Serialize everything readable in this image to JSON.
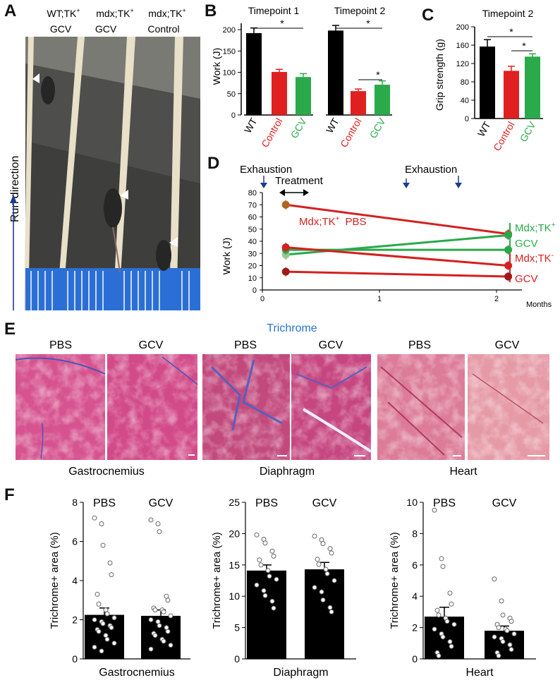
{
  "panels": {
    "A": "A",
    "B": "B",
    "C": "C",
    "D": "D",
    "E": "E",
    "F": "F"
  },
  "panel_a": {
    "col_labels": [
      {
        "line1": "WT;TK",
        "sup": "+",
        "line2": "GCV"
      },
      {
        "line1": "mdx;TK",
        "sup": "+",
        "line2": "GCV"
      },
      {
        "line1": "mdx;TK",
        "sup": "+",
        "line2": "Control"
      }
    ],
    "run_direction": "Run direction",
    "colors": {
      "belt": "#3c3c3a",
      "rail": "#e6ddc8",
      "lane_blue": "#2b6fd6",
      "mouse": "#2a2a2a"
    }
  },
  "panel_b": {
    "groups": [
      {
        "title": "Timepoint 1",
        "categories": [
          "WT",
          "Control",
          "GCV"
        ],
        "values": [
          192,
          101,
          89
        ],
        "errors": [
          12,
          6,
          8
        ]
      },
      {
        "title": "Timepoint 2",
        "categories": [
          "WT",
          "Control",
          "GCV"
        ],
        "values": [
          198,
          56,
          71
        ],
        "errors": [
          12,
          5,
          9
        ]
      }
    ],
    "ylabel": "Work (J)",
    "yticks": [
      0,
      50,
      100,
      150,
      200
    ],
    "ylim": [
      0,
      220
    ],
    "sig": "*"
  },
  "panel_c": {
    "title": "Timepoint 2",
    "categories": [
      "WT",
      "Control",
      "GCV"
    ],
    "values": [
      157,
      104,
      135
    ],
    "errors": [
      15,
      10,
      6
    ],
    "ylabel": "Grip strength (g)",
    "yticks": [
      0,
      40,
      80,
      120,
      160,
      200
    ],
    "ylim": [
      0,
      200
    ],
    "sig": "*"
  },
  "panel_d": {
    "exhaustion_left": "Exhaustion",
    "treatment": "Treatment",
    "exhaustion_right": "Exhaustion",
    "ylabel": "Work (J)",
    "yticks": [
      0,
      10,
      20,
      30,
      40,
      50,
      60,
      70,
      80
    ],
    "xticks": [
      0,
      1,
      2
    ],
    "xlabel_right": "Months",
    "series_label_pbs": "Mdx;TK",
    "series_label_pbs_sup": "+",
    "series_label_pbs_tail": "PBS",
    "legend_green_line1": "Mdx;TK",
    "legend_green_sup": "+",
    "legend_green_line2": "GCV",
    "legend_red_line1": "Mdx;TK",
    "legend_red_sup": "-",
    "legend_red_line2": "GCV"
  },
  "chart_data": [
    {
      "type": "bar",
      "title": "Timepoint 1",
      "categories": [
        "WT",
        "Control",
        "GCV"
      ],
      "values": [
        192,
        101,
        89
      ],
      "ylabel": "Work (J)",
      "ylim": [
        0,
        220
      ]
    },
    {
      "type": "bar",
      "title": "Timepoint 2",
      "categories": [
        "WT",
        "Control",
        "GCV"
      ],
      "values": [
        198,
        56,
        71
      ],
      "ylabel": "Work (J)",
      "ylim": [
        0,
        220
      ]
    },
    {
      "type": "bar",
      "title": "Timepoint 2",
      "categories": [
        "WT",
        "Control",
        "GCV"
      ],
      "values": [
        157,
        104,
        135
      ],
      "ylabel": "Grip strength (g)",
      "ylim": [
        0,
        200
      ]
    },
    {
      "type": "line",
      "ylabel": "Work (J)",
      "xlabel": "Months",
      "ylim": [
        0,
        80
      ],
      "xlim": [
        0,
        2.3
      ],
      "series": [
        {
          "color": "#d42020",
          "x": [
            0.2,
            2.1
          ],
          "values": [
            70,
            46
          ]
        },
        {
          "color": "#2aa84a",
          "x": [
            0.2,
            2.1
          ],
          "values": [
            29,
            45
          ]
        },
        {
          "color": "#2aa84a",
          "x": [
            0.2,
            2.1
          ],
          "values": [
            33,
            33
          ]
        },
        {
          "color": "#d42020",
          "x": [
            0.2,
            2.1
          ],
          "values": [
            35,
            20
          ]
        },
        {
          "color": "#d42020",
          "x": [
            0.2,
            2.1
          ],
          "values": [
            15,
            11
          ]
        }
      ]
    },
    {
      "type": "bar",
      "categories": [
        "PBS",
        "GCV"
      ],
      "values": [
        2.25,
        2.2
      ],
      "ylabel": "Trichrome+ area (%)",
      "xlabel": "Gastrocnemius",
      "ylim": [
        0,
        8
      ]
    },
    {
      "type": "bar",
      "categories": [
        "PBS",
        "GCV"
      ],
      "values": [
        14.1,
        14.3
      ],
      "ylabel": "Trichrome+ area (%)",
      "xlabel": "Diaphragm",
      "ylim": [
        0,
        25
      ]
    },
    {
      "type": "bar",
      "categories": [
        "PBS",
        "GCV"
      ],
      "values": [
        2.7,
        1.8
      ],
      "ylabel": "Trichrome+ area (%)",
      "xlabel": "Heart",
      "ylim": [
        0,
        10
      ]
    }
  ],
  "panel_e": {
    "stain_title": "Trichrome",
    "tissues": [
      {
        "name": "Gastrocnemius",
        "labels": [
          "PBS",
          "GCV"
        ]
      },
      {
        "name": "Diaphragm",
        "labels": [
          "PBS",
          "GCV"
        ]
      },
      {
        "name": "Heart",
        "labels": [
          "PBS",
          "GCV"
        ]
      }
    ],
    "colors": {
      "muscle": "#d44f8c",
      "fibrosis": "#4a55b8",
      "heart": "#e2859b"
    }
  },
  "panel_f": {
    "plots": [
      {
        "tissue": "Gastrocnemius",
        "ylabel": "Trichrome+ area (%)",
        "yticks": [
          0,
          2,
          4,
          6,
          8
        ],
        "ylim": [
          0,
          8
        ],
        "cats": [
          "PBS",
          "GCV"
        ],
        "means": [
          2.25,
          2.2
        ],
        "sem": [
          0.35,
          0.3
        ],
        "points": [
          [
            7.2,
            6.9,
            5.8,
            4.9,
            4.3,
            3.3,
            2.8,
            2.5,
            2.3,
            2.1,
            2.0,
            1.9,
            1.8,
            1.7,
            1.6,
            1.5,
            1.4,
            1.2,
            1.0,
            0.8,
            0.6,
            0.4
          ],
          [
            7.1,
            6.9,
            6.5,
            3.2,
            3.0,
            2.6,
            2.5,
            2.5,
            2.4,
            2.2,
            2.0,
            1.9,
            1.7,
            1.6,
            1.4,
            1.3,
            1.2,
            1.0,
            0.9,
            0.7,
            0.5
          ]
        ]
      },
      {
        "tissue": "Diaphragm",
        "ylabel": "Trichrome+ area (%)",
        "yticks": [
          0,
          5,
          10,
          15,
          20,
          25
        ],
        "ylim": [
          0,
          25
        ],
        "cats": [
          "PBS",
          "GCV"
        ],
        "means": [
          14.1,
          14.3
        ],
        "sem": [
          0.9,
          1.1
        ],
        "points": [
          [
            19.8,
            19.1,
            18.5,
            17.2,
            16.4,
            15.8,
            15.0,
            14.1,
            13.2,
            12.7,
            11.8,
            10.9,
            10.1,
            9.2,
            8.1
          ],
          [
            19.6,
            19.0,
            18.4,
            17.6,
            16.9,
            15.9,
            15.1,
            14.3,
            13.6,
            12.5,
            11.4,
            10.7,
            9.4,
            8.2,
            7.5
          ]
        ]
      },
      {
        "tissue": "Heart",
        "ylabel": "Trichrome+ area (%)",
        "yticks": [
          0,
          2,
          4,
          6,
          8,
          10
        ],
        "ylim": [
          0,
          10
        ],
        "cats": [
          "PBS",
          "GCV"
        ],
        "means": [
          2.7,
          1.8
        ],
        "sem": [
          0.6,
          0.3
        ],
        "points": [
          [
            9.5,
            6.4,
            5.9,
            4.2,
            3.5,
            3.1,
            2.8,
            2.6,
            2.4,
            2.2,
            1.9,
            1.6,
            1.4,
            1.1,
            0.8,
            0.4,
            0.2
          ],
          [
            5.1,
            3.7,
            2.8,
            2.6,
            2.4,
            2.2,
            2.0,
            1.9,
            1.8,
            1.6,
            1.4,
            1.3,
            1.1,
            0.9,
            0.6,
            0.4,
            0.2
          ]
        ]
      }
    ]
  }
}
